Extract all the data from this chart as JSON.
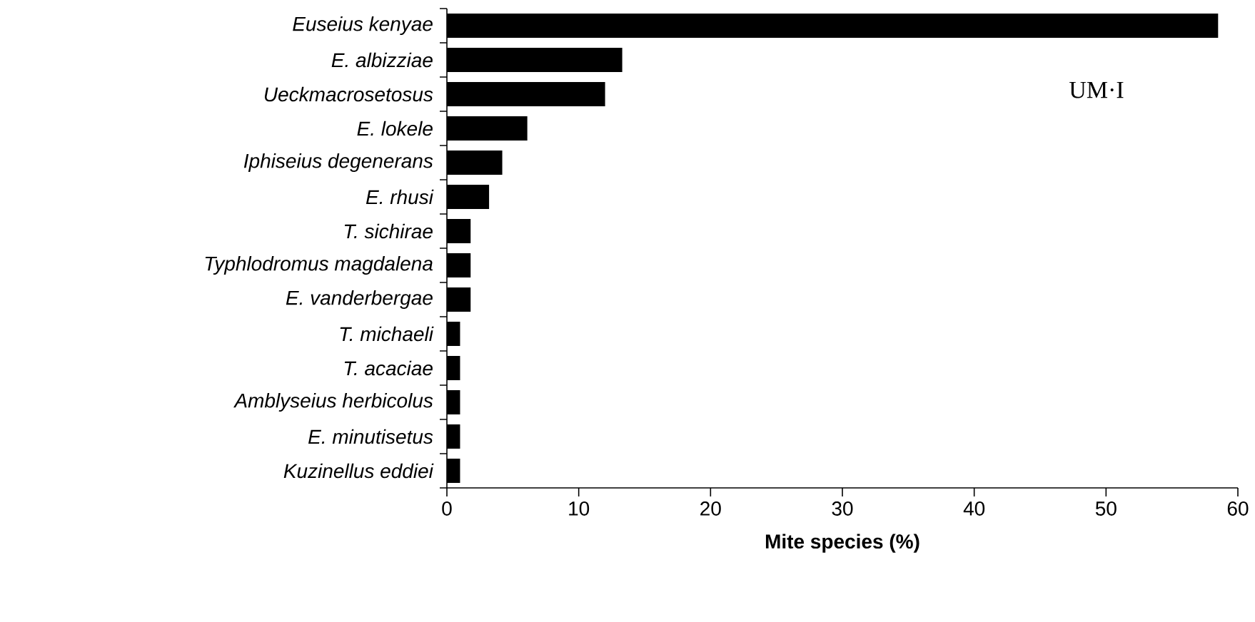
{
  "chart_data": {
    "type": "bar",
    "orientation": "horizontal",
    "xlabel": "Mite species (%)",
    "categories": [
      "*Euseius kenyae*",
      "*E. albizziae*",
      "*Ueckmacrosetosus*",
      "*E. lokele*",
      "*Iphiseius degenerans*",
      "*E. rhusi*",
      "*T. sichirae*",
      "*Typhlodromus magdalena*",
      "*E. vanderbergae*",
      "*T. michaeli*",
      "*T. acaciae*",
      "*Amblyseius herbicolus*",
      "*E. minutisetus*",
      "*Kuzinellus eddiei*"
    ],
    "values": [
      58.5,
      13.3,
      12.0,
      6.1,
      4.2,
      3.2,
      1.8,
      1.8,
      1.8,
      1.0,
      1.0,
      1.0,
      1.0,
      1.0
    ],
    "color": "#000000",
    "xlim": [
      0,
      60
    ],
    "xticks": [
      0,
      10,
      20,
      30,
      40,
      50,
      60
    ],
    "annotations": [
      "UM·I"
    ]
  }
}
